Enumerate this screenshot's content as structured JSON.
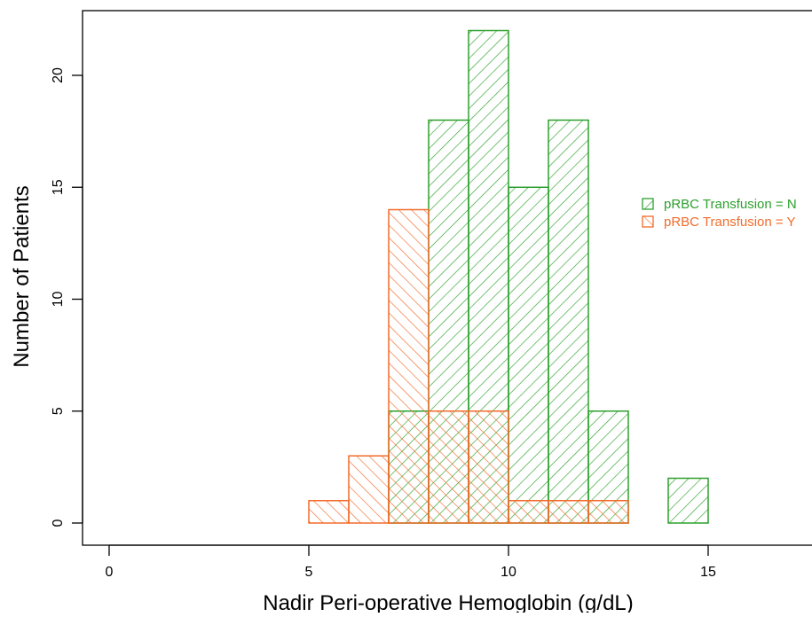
{
  "chart_data": {
    "type": "bar",
    "xlabel": "Nadir Peri-operative Hemoglobin (g/dL)",
    "ylabel": "Number of Patients",
    "xlim": [
      -1,
      17.5
    ],
    "ylim": [
      -1,
      23
    ],
    "x_ticks": [
      0,
      5,
      10,
      15
    ],
    "y_ticks": [
      0,
      5,
      10,
      15,
      20
    ],
    "bin_width": 1,
    "series": [
      {
        "name": "pRBC Transfusion = N",
        "color": "#2ca02c",
        "hatch": "forward-diagonal",
        "bins": [
          {
            "start": 7,
            "count": 5
          },
          {
            "start": 8,
            "count": 18
          },
          {
            "start": 9,
            "count": 22
          },
          {
            "start": 10,
            "count": 15
          },
          {
            "start": 11,
            "count": 18
          },
          {
            "start": 12,
            "count": 5
          },
          {
            "start": 13,
            "count": 0
          },
          {
            "start": 14,
            "count": 2
          }
        ]
      },
      {
        "name": "pRBC Transfusion = Y",
        "color": "#f26b2b",
        "hatch": "backward-diagonal",
        "bins": [
          {
            "start": 5,
            "count": 1
          },
          {
            "start": 6,
            "count": 3
          },
          {
            "start": 7,
            "count": 14
          },
          {
            "start": 8,
            "count": 5
          },
          {
            "start": 9,
            "count": 5
          },
          {
            "start": 10,
            "count": 1
          },
          {
            "start": 11,
            "count": 1
          },
          {
            "start": 12,
            "count": 1
          }
        ]
      }
    ],
    "legend_position": "right"
  }
}
